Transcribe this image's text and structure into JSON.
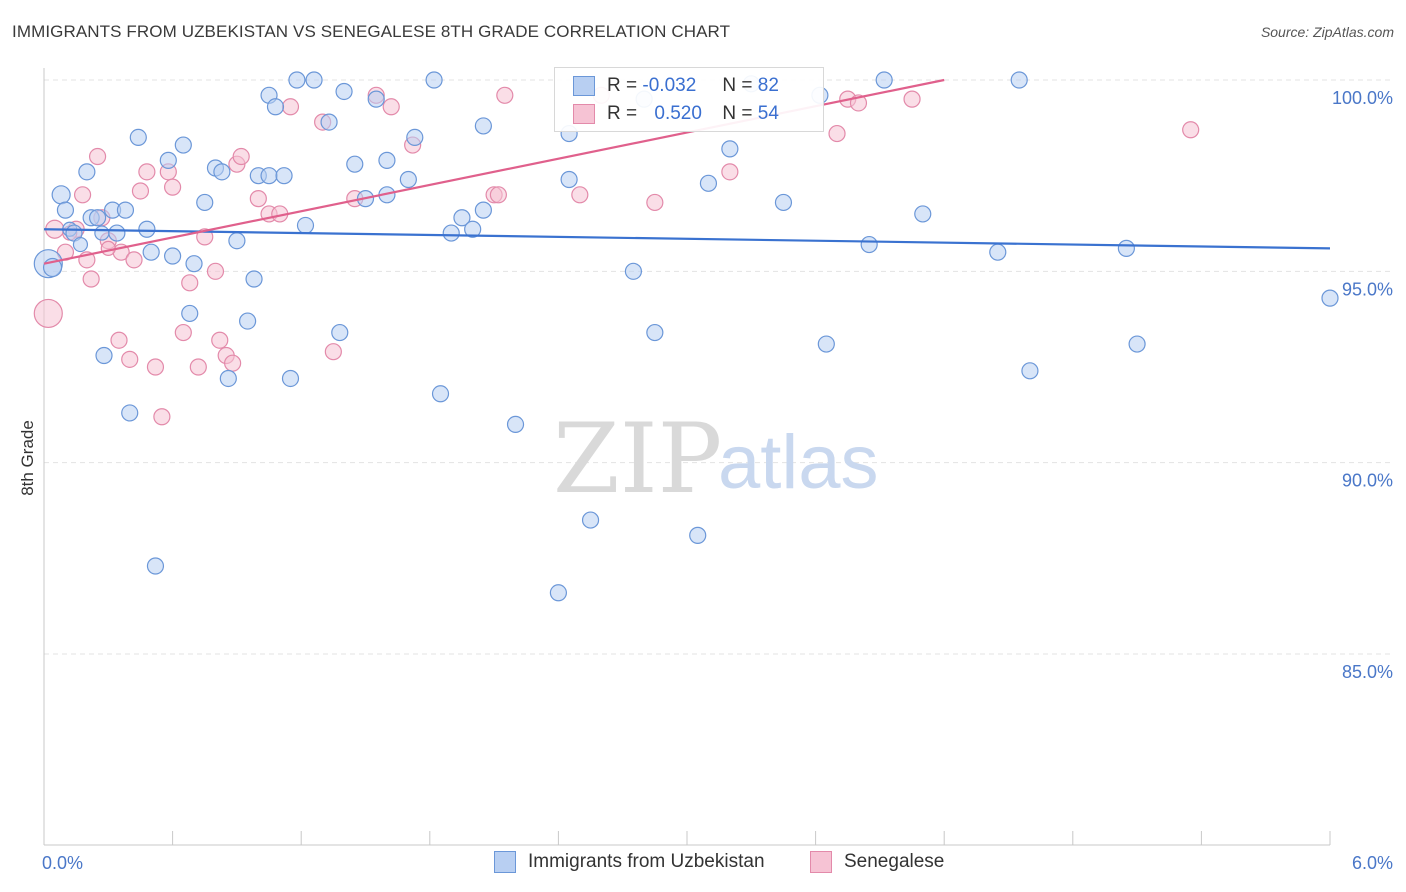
{
  "title": "IMMIGRANTS FROM UZBEKISTAN VS SENEGALESE 8TH GRADE CORRELATION CHART",
  "source": "Source: ZipAtlas.com",
  "watermark": {
    "zip": "ZIP",
    "atlas": "atlas"
  },
  "colors": {
    "blue_fill": "#b8cff2",
    "blue_stroke": "#6b97d8",
    "blue_line": "#3a72d0",
    "pink_fill": "#f6c3d4",
    "pink_stroke": "#e38aaa",
    "pink_line": "#e0608c",
    "tick_label": "#4a77c8",
    "grid": "#e3e3e3"
  },
  "legend": {
    "rows": [
      {
        "r_label": "R =",
        "r_value": "-0.032",
        "n_label": "N =",
        "n_value": "82"
      },
      {
        "r_label": "R =",
        "r_value": "0.520",
        "n_label": "N =",
        "n_value": "54"
      }
    ]
  },
  "bottom_legend": [
    "Immigrants from Uzbekistan",
    "Senegalese"
  ],
  "chart_data": {
    "type": "scatter",
    "title": "IMMIGRANTS FROM UZBEKISTAN VS SENEGALESE 8TH GRADE CORRELATION CHART",
    "xlabel": "",
    "ylabel": "8th Grade",
    "xlim": [
      0,
      6
    ],
    "ylim": [
      80.5,
      100.8
    ],
    "x_tick_labels": [
      "0.0%",
      "6.0%"
    ],
    "y_ticks": [
      85,
      90,
      95,
      100
    ],
    "y_tick_labels": [
      "85.0%",
      "90.0%",
      "95.0%",
      "100.0%"
    ],
    "grid": true,
    "legend_position": "top-center",
    "series": [
      {
        "name": "Immigrants from Uzbekistan",
        "trend": {
          "x": [
            0,
            6
          ],
          "y": [
            96.1,
            95.6
          ]
        },
        "points": [
          [
            0.02,
            95.2,
            14
          ],
          [
            0.04,
            95.1,
            9
          ],
          [
            0.08,
            97.0,
            9
          ],
          [
            0.1,
            96.6,
            8
          ],
          [
            0.12,
            96.1,
            7
          ],
          [
            0.14,
            96.0,
            8
          ],
          [
            0.17,
            95.7,
            7
          ],
          [
            0.2,
            97.6,
            8
          ],
          [
            0.22,
            96.4,
            8
          ],
          [
            0.25,
            96.4,
            8
          ],
          [
            0.27,
            96.0,
            7
          ],
          [
            0.28,
            92.8,
            8
          ],
          [
            0.32,
            96.6,
            8
          ],
          [
            0.34,
            96.0,
            8
          ],
          [
            0.38,
            96.6,
            8
          ],
          [
            0.4,
            91.3,
            8
          ],
          [
            0.44,
            98.5,
            8
          ],
          [
            0.48,
            96.1,
            8
          ],
          [
            0.5,
            95.5,
            8
          ],
          [
            0.52,
            87.3,
            8
          ],
          [
            0.58,
            97.9,
            8
          ],
          [
            0.6,
            95.4,
            8
          ],
          [
            0.65,
            98.3,
            8
          ],
          [
            0.68,
            93.9,
            8
          ],
          [
            0.7,
            95.2,
            8
          ],
          [
            0.75,
            96.8,
            8
          ],
          [
            0.8,
            97.7,
            8
          ],
          [
            0.83,
            97.6,
            8
          ],
          [
            0.86,
            92.2,
            8
          ],
          [
            0.9,
            95.8,
            8
          ],
          [
            0.95,
            93.7,
            8
          ],
          [
            0.98,
            94.8,
            8
          ],
          [
            1.0,
            97.5,
            8
          ],
          [
            1.05,
            97.5,
            8
          ],
          [
            1.05,
            99.6,
            8
          ],
          [
            1.08,
            99.3,
            8
          ],
          [
            1.12,
            97.5,
            8
          ],
          [
            1.15,
            92.2,
            8
          ],
          [
            1.18,
            100.0,
            8
          ],
          [
            1.22,
            96.2,
            8
          ],
          [
            1.26,
            100.0,
            8
          ],
          [
            1.33,
            98.9,
            8
          ],
          [
            1.38,
            93.4,
            8
          ],
          [
            1.4,
            99.7,
            8
          ],
          [
            1.45,
            97.8,
            8
          ],
          [
            1.5,
            96.9,
            8
          ],
          [
            1.55,
            99.5,
            8
          ],
          [
            1.6,
            97.9,
            8
          ],
          [
            1.6,
            97.0,
            8
          ],
          [
            1.7,
            97.4,
            8
          ],
          [
            1.73,
            98.5,
            8
          ],
          [
            1.82,
            100.0,
            8
          ],
          [
            1.85,
            91.8,
            8
          ],
          [
            1.9,
            96.0,
            8
          ],
          [
            1.95,
            96.4,
            8
          ],
          [
            2.0,
            96.1,
            8
          ],
          [
            2.05,
            98.8,
            8
          ],
          [
            2.05,
            96.6,
            8
          ],
          [
            2.2,
            91.0,
            8
          ],
          [
            2.4,
            86.6,
            8
          ],
          [
            2.45,
            98.6,
            8
          ],
          [
            2.45,
            97.4,
            8
          ],
          [
            2.55,
            88.5,
            8
          ],
          [
            2.75,
            95.0,
            8
          ],
          [
            2.8,
            99.5,
            8
          ],
          [
            2.85,
            93.4,
            8
          ],
          [
            3.05,
            88.1,
            8
          ],
          [
            3.1,
            97.3,
            8
          ],
          [
            3.2,
            98.2,
            8
          ],
          [
            3.3,
            99.9,
            8
          ],
          [
            3.45,
            96.8,
            8
          ],
          [
            3.62,
            99.6,
            8
          ],
          [
            3.65,
            93.1,
            8
          ],
          [
            3.85,
            95.7,
            8
          ],
          [
            3.92,
            100.0,
            8
          ],
          [
            4.1,
            96.5,
            8
          ],
          [
            4.45,
            95.5,
            8
          ],
          [
            4.55,
            100.0,
            8
          ],
          [
            4.6,
            92.4,
            8
          ],
          [
            5.05,
            95.6,
            8
          ],
          [
            5.1,
            93.1,
            8
          ],
          [
            6.0,
            94.3,
            8
          ]
        ]
      },
      {
        "name": "Senegalese",
        "trend": {
          "x": [
            0,
            4.2
          ],
          "y": [
            95.2,
            100.0
          ]
        },
        "points": [
          [
            0.02,
            93.9,
            14
          ],
          [
            0.05,
            96.1,
            9
          ],
          [
            0.1,
            95.5,
            8
          ],
          [
            0.15,
            96.1,
            8
          ],
          [
            0.18,
            97.0,
            8
          ],
          [
            0.2,
            95.3,
            8
          ],
          [
            0.22,
            94.8,
            8
          ],
          [
            0.25,
            98.0,
            8
          ],
          [
            0.27,
            96.4,
            8
          ],
          [
            0.3,
            95.8,
            8
          ],
          [
            0.35,
            93.2,
            8
          ],
          [
            0.36,
            95.5,
            8
          ],
          [
            0.4,
            92.7,
            8
          ],
          [
            0.42,
            95.3,
            8
          ],
          [
            0.45,
            97.1,
            8
          ],
          [
            0.48,
            97.6,
            8
          ],
          [
            0.52,
            92.5,
            8
          ],
          [
            0.55,
            91.2,
            8
          ],
          [
            0.58,
            97.6,
            8
          ],
          [
            0.6,
            97.2,
            8
          ],
          [
            0.65,
            93.4,
            8
          ],
          [
            0.68,
            94.7,
            8
          ],
          [
            0.72,
            92.5,
            8
          ],
          [
            0.75,
            95.9,
            8
          ],
          [
            0.8,
            95.0,
            8
          ],
          [
            0.82,
            93.2,
            8
          ],
          [
            0.85,
            92.8,
            8
          ],
          [
            0.88,
            92.6,
            8
          ],
          [
            0.9,
            97.8,
            8
          ],
          [
            0.92,
            98.0,
            8
          ],
          [
            1.0,
            96.9,
            8
          ],
          [
            1.05,
            96.5,
            8
          ],
          [
            1.1,
            96.5,
            8
          ],
          [
            1.15,
            99.3,
            8
          ],
          [
            1.3,
            98.9,
            8
          ],
          [
            1.35,
            92.9,
            8
          ],
          [
            1.45,
            96.9,
            8
          ],
          [
            1.55,
            99.6,
            8
          ],
          [
            1.62,
            99.3,
            8
          ],
          [
            1.72,
            98.3,
            8
          ],
          [
            2.1,
            97.0,
            8
          ],
          [
            2.12,
            97.0,
            8
          ],
          [
            2.15,
            99.6,
            8
          ],
          [
            2.5,
            97.0,
            8
          ],
          [
            2.6,
            99.6,
            8
          ],
          [
            2.85,
            96.8,
            8
          ],
          [
            3.2,
            97.6,
            8
          ],
          [
            3.7,
            98.6,
            8
          ],
          [
            3.75,
            99.5,
            8
          ],
          [
            3.8,
            99.4,
            8
          ],
          [
            4.05,
            99.5,
            8
          ],
          [
            5.35,
            98.7,
            8
          ],
          [
            0.12,
            96.0,
            7
          ],
          [
            0.3,
            95.6,
            7
          ]
        ]
      }
    ]
  }
}
